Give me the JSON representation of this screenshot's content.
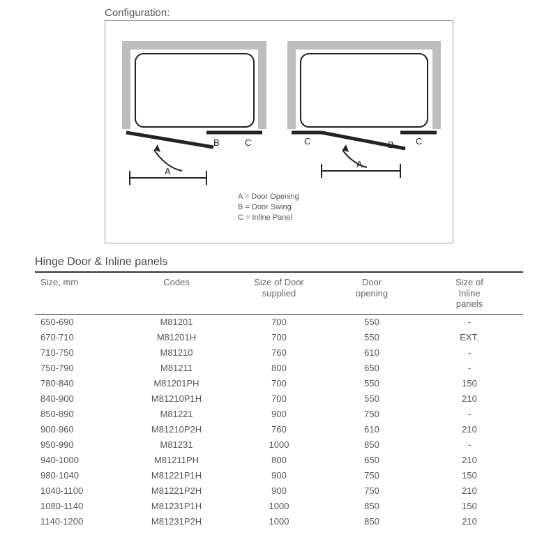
{
  "config": {
    "heading": "Configuration:",
    "legend": {
      "a": "A = Door Opening",
      "b": "B = Door Swing",
      "c": "C = Inline Panel"
    },
    "labels": {
      "A": "A",
      "B": "B",
      "C": "C"
    },
    "colors": {
      "stroke": "#222222",
      "frame_outer": "#bdbdbd",
      "frame_inner": "#ffffff",
      "background": "#ffffff"
    },
    "line_widths": {
      "frame": 8,
      "door": 4,
      "thin": 1.5
    }
  },
  "section_title": "Hinge Door & Inline panels",
  "table": {
    "columns": [
      {
        "key": "size",
        "label1": "Size, mm",
        "label2": ""
      },
      {
        "key": "codes",
        "label1": "Codes",
        "label2": ""
      },
      {
        "key": "dsize",
        "label1": "Size of Door",
        "label2": "supplied"
      },
      {
        "key": "open",
        "label1": "Door",
        "label2": "opening"
      },
      {
        "key": "inline",
        "label1": "Size of",
        "label2": "Inline",
        "label3": "panels"
      }
    ],
    "rows": [
      {
        "size": "650-690",
        "codes": "M81201",
        "dsize": "700",
        "open": "550",
        "inline": "-"
      },
      {
        "size": "670-710",
        "codes": "M81201H",
        "dsize": "700",
        "open": "550",
        "inline": "EXT."
      },
      {
        "size": "710-750",
        "codes": "M81210",
        "dsize": "760",
        "open": "610",
        "inline": "-"
      },
      {
        "size": "750-790",
        "codes": "M81211",
        "dsize": "800",
        "open": "650",
        "inline": "-"
      },
      {
        "size": "780-840",
        "codes": "M81201PH",
        "dsize": "700",
        "open": "550",
        "inline": "150"
      },
      {
        "size": "840-900",
        "codes": "M81210P1H",
        "dsize": "700",
        "open": "550",
        "inline": "210"
      },
      {
        "size": "850-890",
        "codes": "M81221",
        "dsize": "900",
        "open": "750",
        "inline": "-"
      },
      {
        "size": "900-960",
        "codes": "M81210P2H",
        "dsize": "760",
        "open": "610",
        "inline": "210"
      },
      {
        "size": "950-990",
        "codes": "M81231",
        "dsize": "1000",
        "open": "850",
        "inline": "-"
      },
      {
        "size": "940-1000",
        "codes": "M81211PH",
        "dsize": "800",
        "open": "650",
        "inline": "210"
      },
      {
        "size": "980-1040",
        "codes": "M81221P1H",
        "dsize": "900",
        "open": "750",
        "inline": "150"
      },
      {
        "size": "1040-1100",
        "codes": "M81221P2H",
        "dsize": "900",
        "open": "750",
        "inline": "210"
      },
      {
        "size": "1080-1140",
        "codes": "M81231P1H",
        "dsize": "1000",
        "open": "850",
        "inline": "150"
      },
      {
        "size": "1140-1200",
        "codes": "M81231P2H",
        "dsize": "1000",
        "open": "850",
        "inline": "210"
      }
    ]
  }
}
